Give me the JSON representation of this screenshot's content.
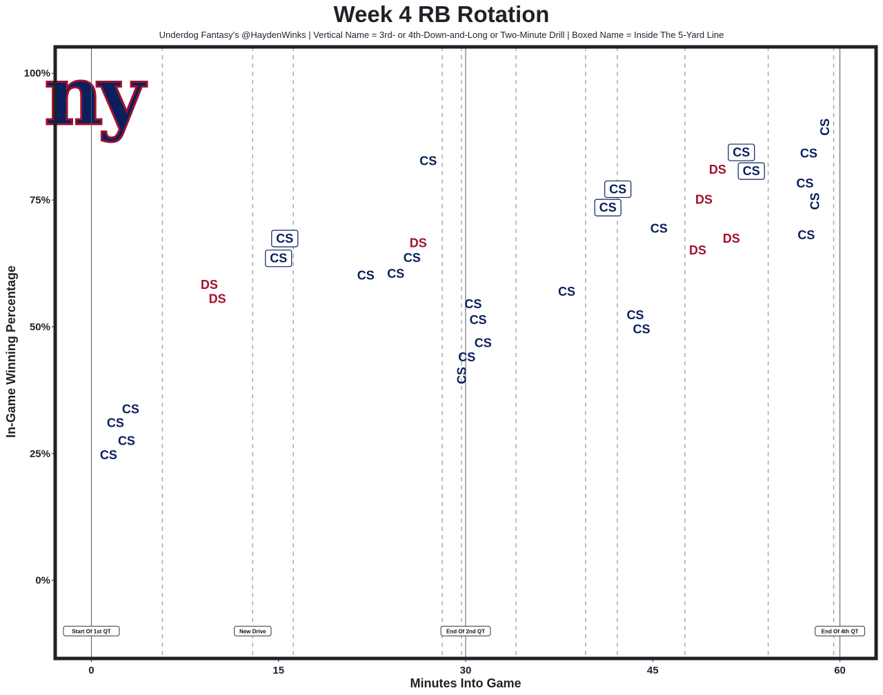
{
  "chart_data": {
    "type": "scatter",
    "title": "Week 4 RB Rotation",
    "subtitle": "Underdog Fantasy's @HaydenWinks | Vertical Name = 3rd- or 4th-Down-and-Long or Two-Minute Drill | Boxed Name = Inside The 5-Yard Line",
    "xlabel": "Minutes Into Game",
    "ylabel": "In-Game Winning Percentage",
    "xlim": [
      -2.9,
      62.9
    ],
    "ylim": [
      -15.4,
      105.2
    ],
    "xticks": [
      {
        "v": 0,
        "label": "0"
      },
      {
        "v": 15,
        "label": "15"
      },
      {
        "v": 30,
        "label": "30"
      },
      {
        "v": 45,
        "label": "45"
      },
      {
        "v": 60,
        "label": "60"
      }
    ],
    "yticks": [
      {
        "v": 0,
        "label": "0%"
      },
      {
        "v": 25,
        "label": "25%"
      },
      {
        "v": 50,
        "label": "50%"
      },
      {
        "v": 75,
        "label": "75%"
      },
      {
        "v": 100,
        "label": "100%"
      }
    ],
    "colors": {
      "CS": "#0b1f5c",
      "DS": "#a0122e",
      "frame": "#1f2128"
    },
    "quarter_lines": [
      0,
      30,
      60
    ],
    "drive_lines": [
      5.69,
      12.93,
      16.19,
      28.12,
      29.67,
      34.03,
      39.61,
      42.15,
      47.57,
      54.25,
      59.5
    ],
    "annotations": [
      {
        "x": 0,
        "y": -10,
        "text": "Start Of 1st QT"
      },
      {
        "x": 12.93,
        "y": -10,
        "text": "New Drive"
      },
      {
        "x": 30,
        "y": -10,
        "text": "End Of 2nd QT"
      },
      {
        "x": 60,
        "y": -10,
        "text": "End Of 4th QT"
      }
    ],
    "logo_text": "ny",
    "points": [
      {
        "x": 1.93,
        "y": 31.0,
        "label": "CS"
      },
      {
        "x": 3.15,
        "y": 31.0,
        "label": "CS"
      },
      {
        "x": 1.38,
        "y": 24.7,
        "label": "CS"
      },
      {
        "x": 2.82,
        "y": 25.3,
        "label": "CS"
      },
      {
        "x": 9.45,
        "y": 58.3,
        "label": "DS"
      },
      {
        "x": 10.1,
        "y": 57.7,
        "label": "DS"
      },
      {
        "x": 15.0,
        "y": 63.5,
        "label": "CS",
        "boxed": true
      },
      {
        "x": 15.5,
        "y": 63.6,
        "label": "CS",
        "boxed": true
      },
      {
        "x": 22.0,
        "y": 60.1,
        "label": "CS"
      },
      {
        "x": 24.4,
        "y": 60.5,
        "label": "CS"
      },
      {
        "x": 25.7,
        "y": 61.4,
        "label": "CS"
      },
      {
        "x": 26.2,
        "y": 64.9,
        "label": "DS"
      },
      {
        "x": 27.0,
        "y": 82.7,
        "label": "CS"
      },
      {
        "x": 30.6,
        "y": 54.5,
        "label": "CS"
      },
      {
        "x": 31.0,
        "y": 54.1,
        "label": "CS"
      },
      {
        "x": 29.7,
        "y": 40.4,
        "label": "CS",
        "vertical": true
      },
      {
        "x": 30.1,
        "y": 44.0,
        "label": "CS"
      },
      {
        "x": 31.4,
        "y": 44.6,
        "label": "CS"
      },
      {
        "x": 38.1,
        "y": 56.9,
        "label": "CS"
      },
      {
        "x": 41.4,
        "y": 73.5,
        "label": "CS",
        "boxed": true
      },
      {
        "x": 42.2,
        "y": 75.5,
        "label": "CS",
        "boxed": true
      },
      {
        "x": 45.5,
        "y": 69.4,
        "label": "CS"
      },
      {
        "x": 43.6,
        "y": 52.3,
        "label": "CS"
      },
      {
        "x": 44.1,
        "y": 50.1,
        "label": "CS"
      },
      {
        "x": 49.1,
        "y": 75.1,
        "label": "DS"
      },
      {
        "x": 48.6,
        "y": 65.1,
        "label": "DS"
      },
      {
        "x": 50.2,
        "y": 81.0,
        "label": "DS"
      },
      {
        "x": 51.3,
        "y": 67.4,
        "label": "DS"
      },
      {
        "x": 52.1,
        "y": 83.3,
        "label": "CS",
        "boxed": true
      },
      {
        "x": 52.9,
        "y": 81.8,
        "label": "CS",
        "boxed": true
      },
      {
        "x": 57.5,
        "y": 84.2,
        "label": "CS"
      },
      {
        "x": 57.2,
        "y": 78.3,
        "label": "CS"
      },
      {
        "x": 58.0,
        "y": 80.2,
        "label": "CS",
        "vertical": true
      },
      {
        "x": 58.8,
        "y": 89.4,
        "label": "CS",
        "vertical": true
      },
      {
        "x": 57.3,
        "y": 68.1,
        "label": "CS"
      }
    ]
  }
}
